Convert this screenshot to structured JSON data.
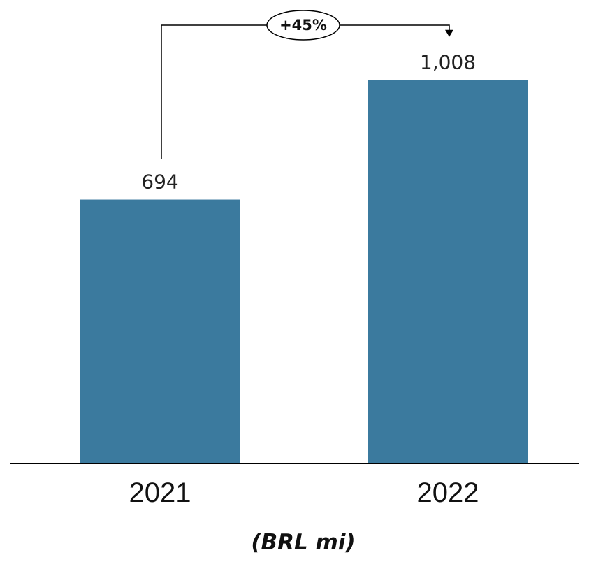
{
  "chart_data": {
    "type": "bar",
    "categories": [
      "2021",
      "2022"
    ],
    "values": [
      694,
      1008
    ],
    "value_labels": [
      "694",
      "1,008"
    ],
    "unit_label": "(BRL mi)",
    "annotation": {
      "text": "+45%",
      "from": "2021",
      "to": "2022"
    },
    "ylim": [
      0,
      1100
    ],
    "grid": false,
    "legend": "none",
    "colors": {
      "bar": "#3b7a9e",
      "axis": "#000000"
    }
  }
}
